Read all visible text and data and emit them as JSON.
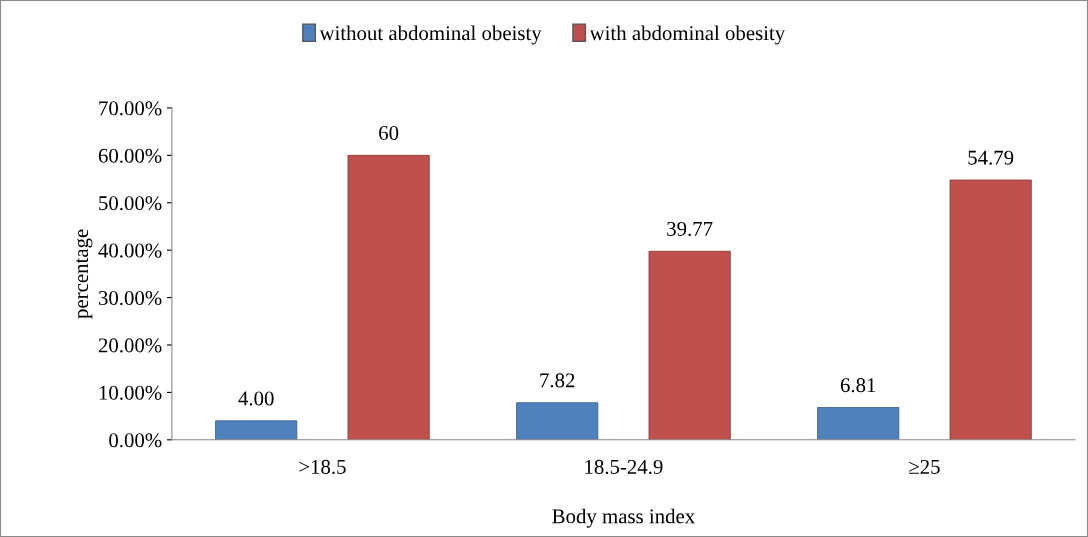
{
  "chart_data": {
    "type": "bar",
    "xlabel": "Body mass index",
    "ylabel": "percentage",
    "categories": [
      ">18.5",
      "18.5-24.9",
      "≥25"
    ],
    "series": [
      {
        "name": "without abdominal obeisty",
        "color": "#4f81bd",
        "values": [
          4.0,
          7.82,
          6.81
        ],
        "value_labels": [
          "4.00",
          "7.82",
          "6.81"
        ]
      },
      {
        "name": "with abdominal obesity",
        "color": "#c0504d",
        "values": [
          60,
          39.77,
          54.79
        ],
        "value_labels": [
          "60",
          "39.77",
          "54.79"
        ]
      }
    ],
    "ylim": [
      0,
      70
    ],
    "yticks": [
      {
        "value": 0,
        "label": "0.00%"
      },
      {
        "value": 10,
        "label": "10.00%"
      },
      {
        "value": 20,
        "label": "20.00%"
      },
      {
        "value": 30,
        "label": "30.00%"
      },
      {
        "value": 40,
        "label": "40.00%"
      },
      {
        "value": 50,
        "label": "50.00%"
      },
      {
        "value": 60,
        "label": "60.00%"
      },
      {
        "value": 70,
        "label": "70.00%"
      }
    ],
    "grid": false,
    "legend": "top"
  }
}
